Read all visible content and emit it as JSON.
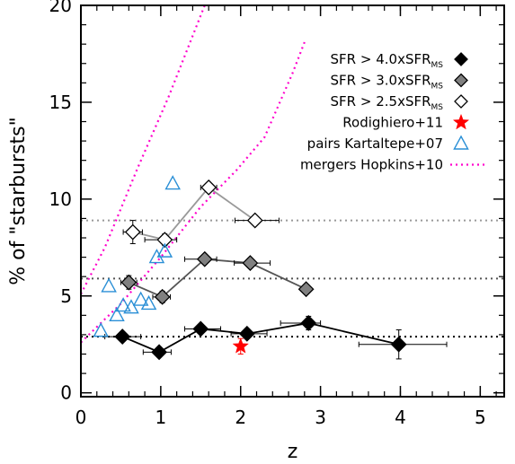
{
  "chart_data": {
    "type": "scatter",
    "xlabel": "z",
    "ylabel": "% of \"starbursts\"",
    "xlim": [
      0,
      5.3
    ],
    "ylim": [
      -0.2,
      20
    ],
    "xticks": [
      0,
      1,
      2,
      3,
      4,
      5
    ],
    "yticks": [
      0,
      5,
      10,
      15,
      20
    ],
    "legend_position": "top-right",
    "colors": {
      "sfr40": "#000000",
      "sfr30": "#808080",
      "sfr25": "#ffffff",
      "line40": "#000000",
      "line30": "#555555",
      "line25": "#999999",
      "rodighiero": "#ff0000",
      "kartaltepe": "#2a8fd6",
      "hopkins": "#ff00cc"
    },
    "series": [
      {
        "name": "SFR > 4.0xSFR",
        "name_sub": "MS",
        "marker": "diamond-filled",
        "connected": true,
        "points": [
          {
            "x": 0.52,
            "y": 2.9,
            "xerr": [
              0.22,
              0.23
            ],
            "yerr": 0.2
          },
          {
            "x": 0.98,
            "y": 2.1,
            "xerr": [
              0.2,
              0.15
            ],
            "yerr": 0.25
          },
          {
            "x": 1.5,
            "y": 3.3,
            "xerr": [
              0.2,
              0.25
            ],
            "yerr": 0.2
          },
          {
            "x": 2.08,
            "y": 3.05,
            "xerr": [
              0.2,
              0.25
            ],
            "yerr": 0.25
          },
          {
            "x": 2.85,
            "y": 3.6,
            "xerr": [
              0.35,
              0.15
            ],
            "yerr": 0.35
          },
          {
            "x": 3.98,
            "y": 2.5,
            "xerr": [
              0.5,
              0.6
            ],
            "yerr": 0.75
          }
        ]
      },
      {
        "name": "SFR > 3.0xSFR",
        "name_sub": "MS",
        "marker": "diamond-gray",
        "connected": true,
        "points": [
          {
            "x": 0.6,
            "y": 5.7,
            "xerr": [
              0.1,
              0.1
            ],
            "yerr": 0.35
          },
          {
            "x": 1.02,
            "y": 4.95,
            "xerr": [
              0.12,
              0.1
            ],
            "yerr": 0.3
          },
          {
            "x": 1.55,
            "y": 6.9,
            "xerr": [
              0.25,
              0.15
            ],
            "yerr": 0.25
          },
          {
            "x": 2.12,
            "y": 6.7,
            "xerr": [
              0.2,
              0.25
            ],
            "yerr": 0.25
          },
          {
            "x": 2.82,
            "y": 5.35,
            "xerr": [
              0.05,
              0.05
            ],
            "yerr": 0.1
          }
        ]
      },
      {
        "name": "SFR > 2.5xSFR",
        "name_sub": "MS",
        "marker": "diamond-open",
        "connected": true,
        "points": [
          {
            "x": 0.65,
            "y": 8.3,
            "xerr": [
              0.12,
              0.12
            ],
            "yerr": 0.6
          },
          {
            "x": 1.05,
            "y": 7.9,
            "xerr": [
              0.25,
              0.15
            ],
            "yerr": 0.3
          },
          {
            "x": 1.6,
            "y": 10.6,
            "xerr": [
              0.1,
              0.1
            ],
            "yerr": 0.15
          },
          {
            "x": 2.18,
            "y": 8.9,
            "xerr": [
              0.25,
              0.3
            ],
            "yerr": 0.15
          }
        ]
      },
      {
        "name": "Rodighiero+11",
        "marker": "star",
        "connected": false,
        "points": [
          {
            "x": 2.0,
            "y": 2.4,
            "xerr": [
              0,
              0
            ],
            "yerr": 0.4
          }
        ]
      },
      {
        "name": "pairs Kartaltepe+07",
        "marker": "triangle-open",
        "connected": false,
        "points": [
          {
            "x": 0.25,
            "y": 3.2
          },
          {
            "x": 0.35,
            "y": 5.5
          },
          {
            "x": 0.45,
            "y": 4.0
          },
          {
            "x": 0.53,
            "y": 4.5
          },
          {
            "x": 0.63,
            "y": 4.4
          },
          {
            "x": 0.75,
            "y": 4.8
          },
          {
            "x": 0.85,
            "y": 4.6
          },
          {
            "x": 0.95,
            "y": 7.0
          },
          {
            "x": 1.05,
            "y": 7.3
          },
          {
            "x": 1.15,
            "y": 10.8
          }
        ]
      },
      {
        "name": "mergers Hopkins+10",
        "marker": "dotted-line",
        "connected": false,
        "lines": [
          [
            [
              0.0,
              5.1
            ],
            [
              0.3,
              7.5
            ],
            [
              0.7,
              11.5
            ],
            [
              1.1,
              15.3
            ],
            [
              1.55,
              20.0
            ]
          ],
          [
            [
              0.0,
              2.6
            ],
            [
              0.5,
              4.6
            ],
            [
              1.0,
              7.0
            ],
            [
              1.5,
              9.6
            ],
            [
              1.95,
              11.5
            ],
            [
              2.3,
              13.2
            ],
            [
              2.65,
              16.5
            ],
            [
              2.8,
              18.1
            ]
          ]
        ]
      }
    ],
    "reference_lines": [
      {
        "y": 8.9,
        "color": "#999999"
      },
      {
        "y": 5.9,
        "color": "#555555"
      },
      {
        "y": 2.9,
        "color": "#000000"
      }
    ]
  }
}
